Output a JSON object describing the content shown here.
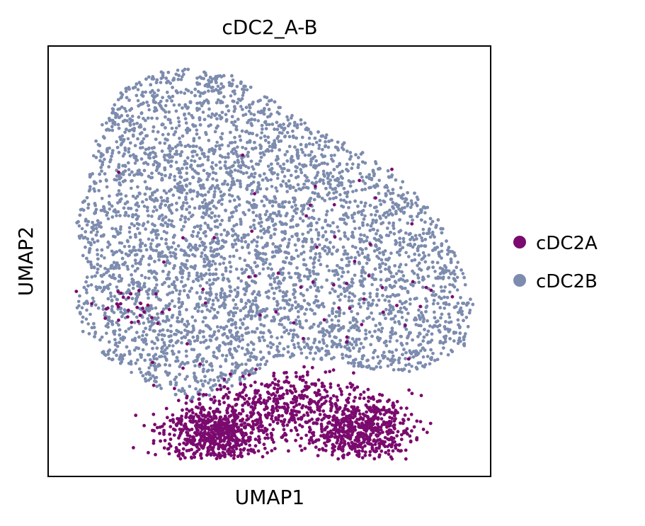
{
  "chart_data": {
    "type": "scatter",
    "title": "cDC2_A-B",
    "xlabel": "UMAP1",
    "ylabel": "UMAP2",
    "xlim": [
      0,
      100
    ],
    "ylim": [
      0,
      100
    ],
    "grid": false,
    "ticks": false,
    "legend": {
      "position": "right"
    },
    "series": [
      {
        "name": "cDC2A",
        "color": "#7b0a6e"
      },
      {
        "name": "cDC2B",
        "color": "#7d8cae"
      }
    ],
    "clusters": [
      {
        "series": 1,
        "cx": 44,
        "cy": 55,
        "sx": 24,
        "sy": 22,
        "n": 9000,
        "shape": "umap-body"
      },
      {
        "series": 0,
        "cx": 38,
        "cy": 10,
        "sx": 6,
        "sy": 3.5,
        "n": 700
      },
      {
        "series": 0,
        "cx": 70,
        "cy": 11,
        "sx": 6,
        "sy": 3.8,
        "n": 650
      },
      {
        "series": 0,
        "cx": 53,
        "cy": 17,
        "sx": 8,
        "sy": 3.5,
        "n": 350
      },
      {
        "series": 0,
        "cx": 18,
        "cy": 39,
        "sx": 4.5,
        "sy": 2.5,
        "n": 30
      },
      {
        "series": 0,
        "cx": 60,
        "cy": 45,
        "sx": 18,
        "sy": 14,
        "n": 60
      }
    ]
  }
}
